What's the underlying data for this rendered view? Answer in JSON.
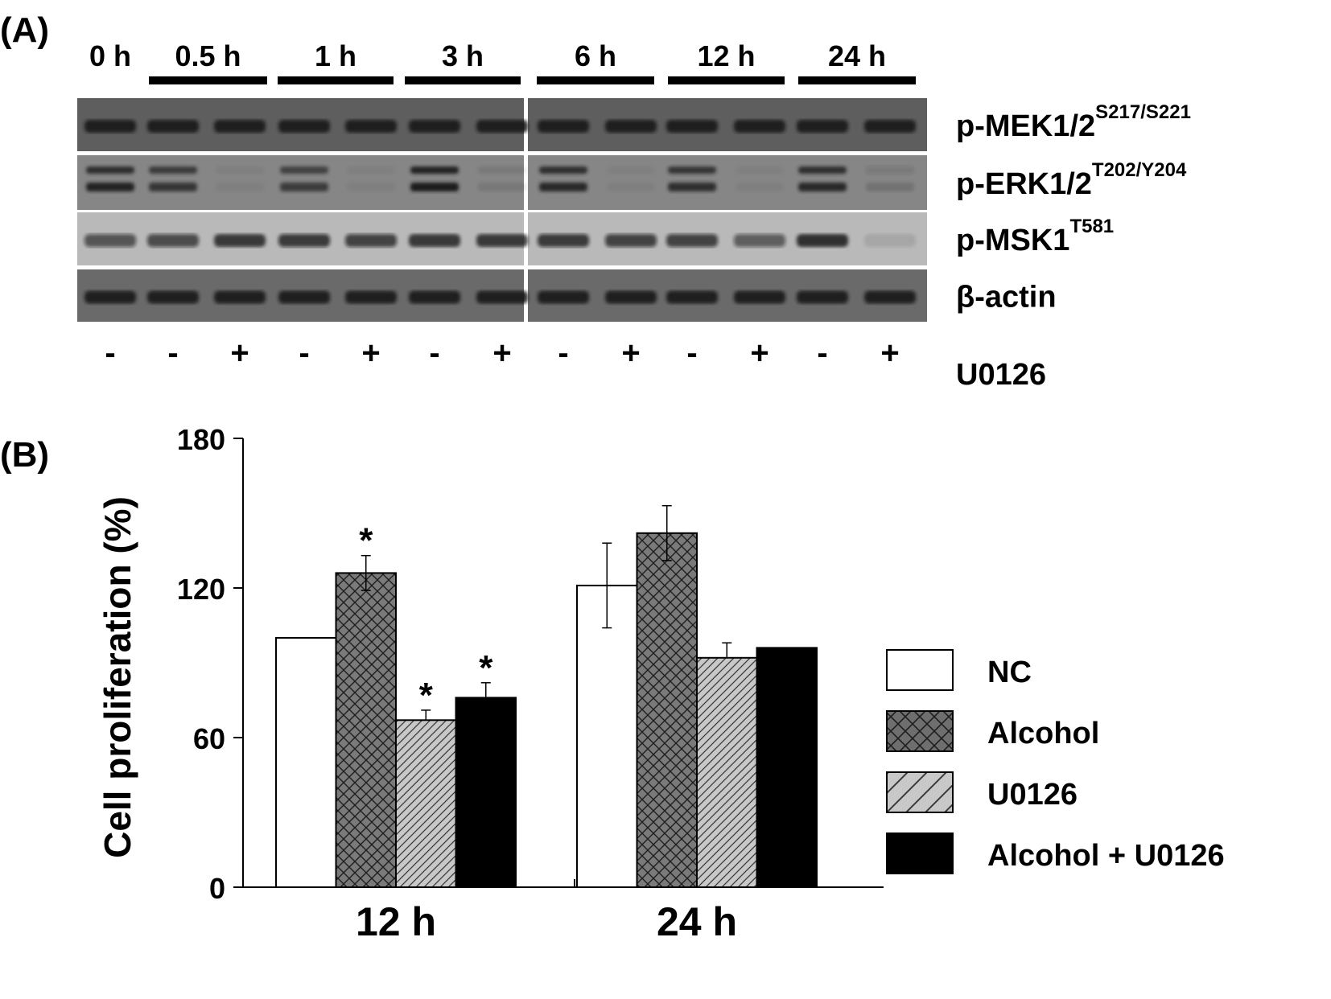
{
  "panel_a": {
    "label": "(A)",
    "time_groups": [
      {
        "label": "0 h",
        "lanes": [
          "-"
        ]
      },
      {
        "label": "0.5 h",
        "lanes": [
          "-",
          "+"
        ]
      },
      {
        "label": "1 h",
        "lanes": [
          "-",
          "+"
        ]
      },
      {
        "label": "3 h",
        "lanes": [
          "-",
          "+"
        ]
      },
      {
        "label": "6 h",
        "lanes": [
          "-",
          "+"
        ]
      },
      {
        "label": "12 h",
        "lanes": [
          "-",
          "+"
        ]
      },
      {
        "label": "24 h",
        "lanes": [
          "-",
          "+"
        ]
      }
    ],
    "blots": [
      {
        "name": "p-MEK1/2",
        "site": "S217/S221",
        "background": "#5e5e5e",
        "bands": "single"
      },
      {
        "name": "p-ERK1/2",
        "site": "T202/Y204",
        "background": "#868686",
        "bands": "double",
        "intensity": [
          0.9,
          0.75,
          0.05,
          0.7,
          0.05,
          1.0,
          0.1,
          0.85,
          0.05,
          0.8,
          0.05,
          0.85,
          0.15
        ]
      },
      {
        "name": "p-MSK1",
        "site": "T581",
        "background": "#b9b9b9",
        "bands": "single",
        "intensity": [
          0.6,
          0.65,
          0.8,
          0.75,
          0.7,
          0.8,
          0.8,
          0.75,
          0.7,
          0.7,
          0.55,
          0.85,
          0.1
        ]
      },
      {
        "name": "β-actin",
        "site": "",
        "background": "#6a6a6a",
        "bands": "single"
      }
    ],
    "treatment_label": "U0126"
  },
  "panel_b": {
    "label": "(B)",
    "chart_data": {
      "type": "bar",
      "categories": [
        "12 h",
        "24 h"
      ],
      "ylabel": "Cell proliferation (%)",
      "ylim": [
        0,
        180
      ],
      "yticks": [
        0,
        60,
        120,
        180
      ],
      "series": [
        {
          "name": "NC",
          "values": [
            100,
            121
          ],
          "errors": [
            0,
            17
          ],
          "sig": [
            "",
            ""
          ],
          "fill": "white"
        },
        {
          "name": "Alcohol",
          "values": [
            126,
            142
          ],
          "errors": [
            7,
            11
          ],
          "sig": [
            "*",
            ""
          ],
          "fill": "crosshatch"
        },
        {
          "name": "U0126",
          "values": [
            67,
            92
          ],
          "errors": [
            4,
            6
          ],
          "sig": [
            "*",
            ""
          ],
          "fill": "diagonal"
        },
        {
          "name": "Alcohol + U0126",
          "values": [
            76,
            96
          ],
          "errors": [
            6,
            0
          ],
          "sig": [
            "*",
            ""
          ],
          "fill": "black"
        }
      ],
      "legend_position": "right"
    }
  }
}
